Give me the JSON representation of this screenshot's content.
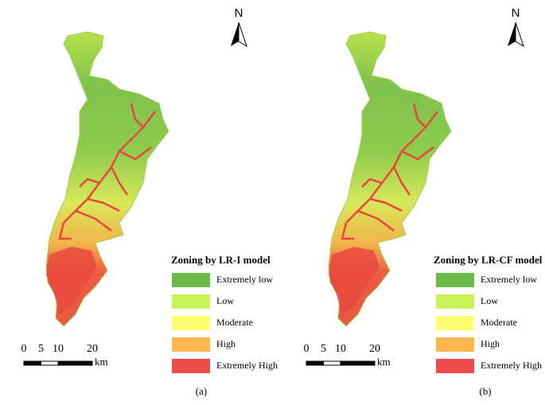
{
  "panels": [
    {
      "north": "N",
      "legend": {
        "title": "Zoning by LR-I model",
        "classes": [
          {
            "label": "Extremely low",
            "color": "#6cbb4a"
          },
          {
            "label": "Low",
            "color": "#c6f25a"
          },
          {
            "label": "Moderate",
            "color": "#ffff73"
          },
          {
            "label": "High",
            "color": "#ffb74d"
          },
          {
            "label": "Extremely High",
            "color": "#f04b4b"
          }
        ]
      },
      "scale": {
        "ticks": [
          0,
          5,
          10,
          20
        ],
        "unit": "km"
      },
      "caption": "(a)"
    },
    {
      "north": "N",
      "legend": {
        "title": "Zoning by LR-CF model",
        "classes": [
          {
            "label": "Extremely low",
            "color": "#6cbb4a"
          },
          {
            "label": "Low",
            "color": "#c6f25a"
          },
          {
            "label": "Moderate",
            "color": "#ffff73"
          },
          {
            "label": "High",
            "color": "#ffb74d"
          },
          {
            "label": "Extremely High",
            "color": "#f04b4b"
          }
        ]
      },
      "scale": {
        "ticks": [
          0,
          5,
          10,
          20
        ],
        "unit": "km"
      },
      "caption": "(b)"
    }
  ]
}
